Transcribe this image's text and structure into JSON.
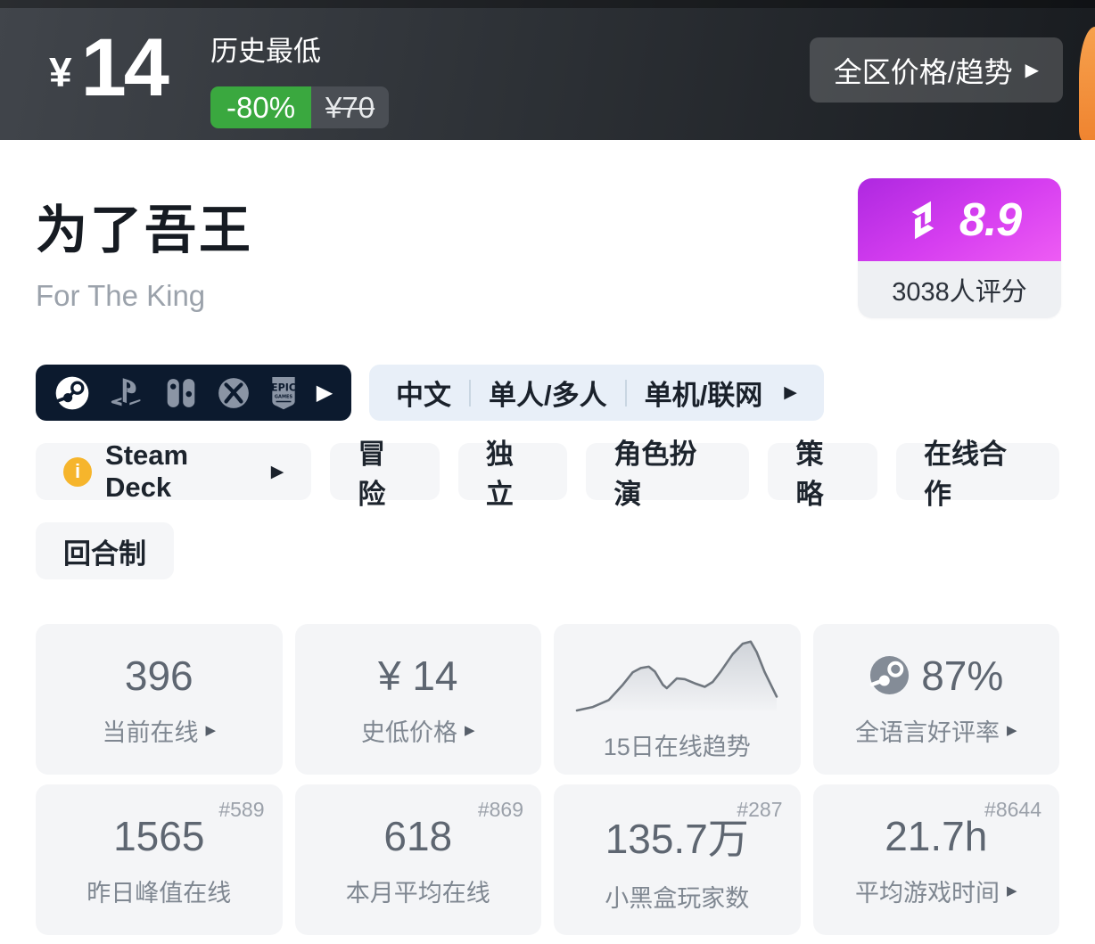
{
  "icons": {
    "play_arrow": "▶",
    "info_glyph": "i"
  },
  "header": {
    "currency": "¥",
    "price": "14",
    "lowest_label": "历史最低",
    "discount": "-80%",
    "original_price": "¥70",
    "trend_button": "全区价格/趋势",
    "discount_color": "#3aa83f"
  },
  "game": {
    "title_cn": "为了吾王",
    "title_en": "For The King"
  },
  "rating": {
    "score": "8.9",
    "count_label": "3038人评分",
    "badge_gradient": [
      "#ae28e0",
      "#ee5cf4"
    ]
  },
  "platforms": {
    "items": [
      "steam",
      "playstation",
      "switch",
      "xbox",
      "epic"
    ],
    "bar_color": "#0c1a2e"
  },
  "meta_bar": {
    "items": [
      "中文",
      "单人/多人",
      "单机/联网"
    ]
  },
  "tags": {
    "steam_deck": "Steam Deck",
    "row1": [
      "冒险",
      "独立",
      "角色扮演",
      "策略",
      "在线合作"
    ],
    "row2": [
      "回合制"
    ]
  },
  "stats": {
    "cards": [
      {
        "value": "396",
        "label": "当前在线",
        "arrow": true
      },
      {
        "value": "¥ 14",
        "label": "史低价格",
        "arrow": true
      },
      {
        "value": "",
        "label": "15日在线趋势",
        "arrow": false
      },
      {
        "value": "87%",
        "label": "全语言好评率",
        "arrow": true,
        "icon": "steam"
      },
      {
        "rank": "#589",
        "value": "1565",
        "label": "昨日峰值在线"
      },
      {
        "rank": "#869",
        "value": "618",
        "label": "本月平均在线"
      },
      {
        "rank": "#287",
        "value": "135.7万",
        "label": "小黑盒玩家数"
      },
      {
        "rank": "#8644",
        "value": "21.7h",
        "label": "平均游戏时间",
        "arrow": true
      }
    ],
    "sparkline": {
      "type": "area",
      "points": [
        [
          0,
          100
        ],
        [
          8,
          95
        ],
        [
          16,
          85
        ],
        [
          23,
          63
        ],
        [
          28,
          45
        ],
        [
          32,
          39
        ],
        [
          36,
          37
        ],
        [
          39,
          44
        ],
        [
          43,
          63
        ],
        [
          45,
          68
        ],
        [
          50,
          54
        ],
        [
          54,
          55
        ],
        [
          59,
          61
        ],
        [
          64,
          66
        ],
        [
          68,
          59
        ],
        [
          72,
          44
        ],
        [
          78,
          19
        ],
        [
          83,
          4
        ],
        [
          87,
          1
        ],
        [
          90,
          16
        ],
        [
          94,
          45
        ],
        [
          100,
          80
        ]
      ],
      "line_color": "#70777f",
      "fill_color": "#ccd0d6"
    }
  }
}
